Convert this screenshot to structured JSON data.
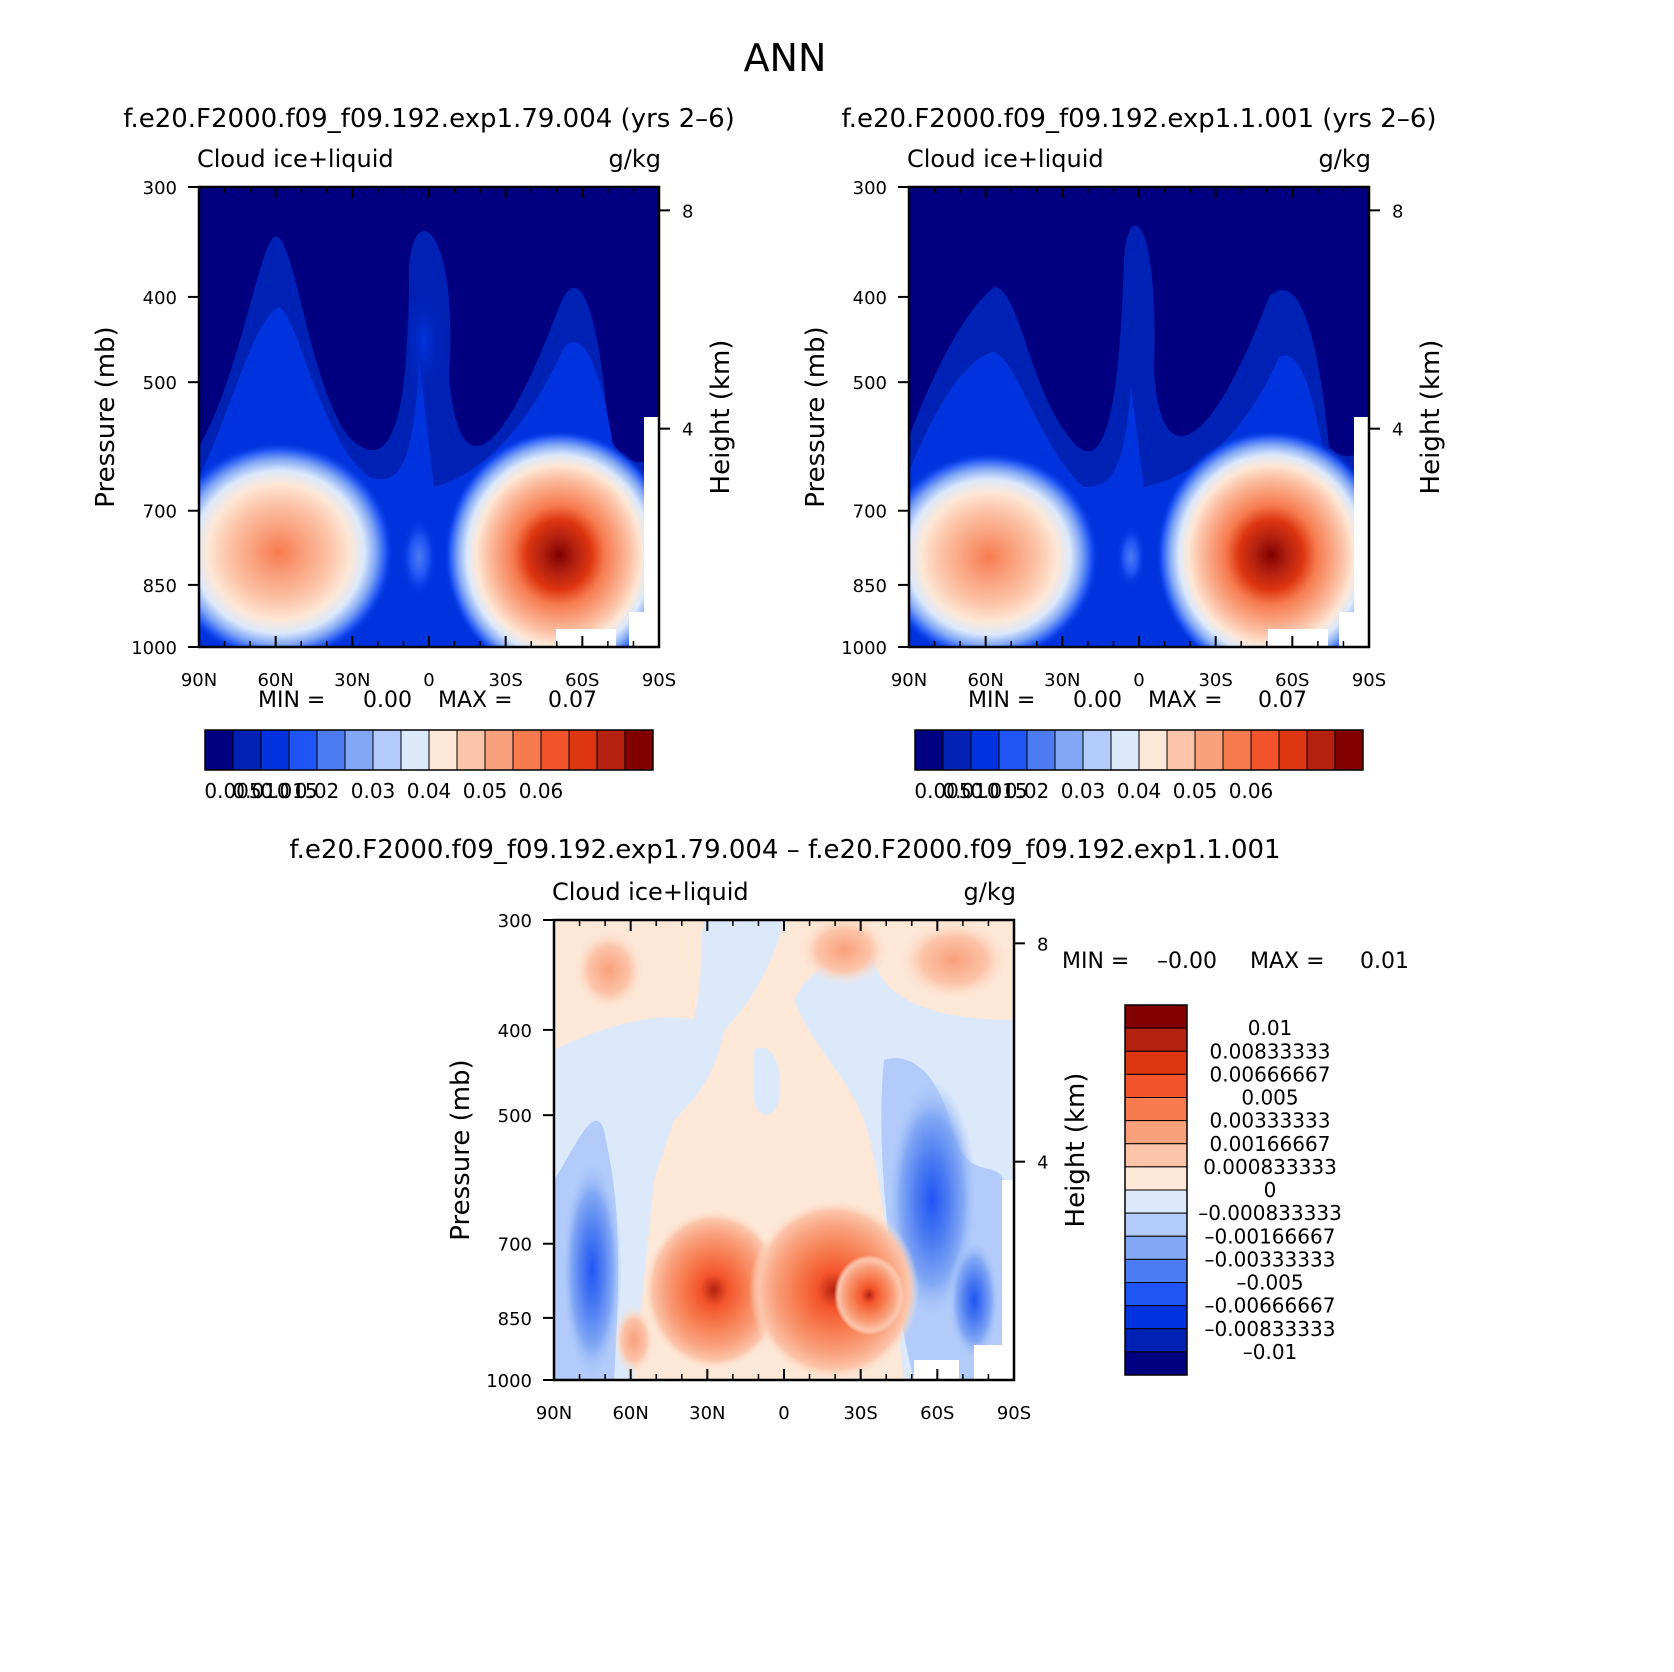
{
  "figure": {
    "title": "ANN"
  },
  "chart_data": [
    {
      "id": "p1",
      "type": "heatmap",
      "title": "f.e20.F2000.f09_f09.192.exp1.79.004 (yrs 2–6)",
      "variable": "Cloud ice+liquid",
      "units": "g/kg",
      "ylabel": "Pressure (mb)",
      "y2label": "Height (km)",
      "x_ticks": [
        "90N",
        "60N",
        "30N",
        "0",
        "30S",
        "60S",
        "90S"
      ],
      "y_ticks": [
        "300",
        "400",
        "500",
        "700",
        "850",
        "1000"
      ],
      "y2_ticks": [
        "8",
        "4"
      ],
      "min_label": "MIN =",
      "min_value": "0.00",
      "max_label": "MAX =",
      "max_value": "0.07",
      "levels": [
        0.005,
        0.01,
        0.015,
        0.02,
        0.03,
        0.04,
        0.05,
        0.06
      ],
      "colorbar_labels": [
        "0.005",
        "0.010",
        "0.015",
        "0.02",
        "0.03",
        "0.04",
        "0.05",
        "0.06"
      ],
      "colors": [
        "#000080",
        "#0022b4",
        "#0033dd",
        "#1f55f5",
        "#4c7bf2",
        "#82a8f5",
        "#b2cbfa",
        "#dce9fb",
        "#fde7d6",
        "#fcc4a9",
        "#f9a07c",
        "#f77b4f",
        "#f4542b",
        "#dd3610",
        "#b42110",
        "#820000"
      ]
    },
    {
      "id": "p2",
      "type": "heatmap",
      "title": "f.e20.F2000.f09_f09.192.exp1.1.001 (yrs 2–6)",
      "variable": "Cloud ice+liquid",
      "units": "g/kg",
      "ylabel": "Pressure (mb)",
      "y2label": "Height (km)",
      "x_ticks": [
        "90N",
        "60N",
        "30N",
        "0",
        "30S",
        "60S",
        "90S"
      ],
      "y_ticks": [
        "300",
        "400",
        "500",
        "700",
        "850",
        "1000"
      ],
      "y2_ticks": [
        "8",
        "4"
      ],
      "min_label": "MIN =",
      "min_value": "0.00",
      "max_label": "MAX =",
      "max_value": "0.07",
      "levels": [
        0.005,
        0.01,
        0.015,
        0.02,
        0.03,
        0.04,
        0.05,
        0.06
      ],
      "colorbar_labels": [
        "0.005",
        "0.010",
        "0.015",
        "0.02",
        "0.03",
        "0.04",
        "0.05",
        "0.06"
      ],
      "colors": [
        "#000080",
        "#0022b4",
        "#0033dd",
        "#1f55f5",
        "#4c7bf2",
        "#82a8f5",
        "#b2cbfa",
        "#dce9fb",
        "#fde7d6",
        "#fcc4a9",
        "#f9a07c",
        "#f77b4f",
        "#f4542b",
        "#dd3610",
        "#b42110",
        "#820000"
      ]
    },
    {
      "id": "p3",
      "type": "heatmap",
      "title": "f.e20.F2000.f09_f09.192.exp1.79.004 – f.e20.F2000.f09_f09.192.exp1.1.001",
      "variable": "Cloud ice+liquid",
      "units": "g/kg",
      "ylabel": "Pressure (mb)",
      "y2label": "Height (km)",
      "x_ticks": [
        "90N",
        "60N",
        "30N",
        "0",
        "30S",
        "60S",
        "90S"
      ],
      "y_ticks": [
        "300",
        "400",
        "500",
        "700",
        "850",
        "1000"
      ],
      "y2_ticks": [
        "8",
        "4"
      ],
      "min_label": "MIN =",
      "min_value": "–0.00",
      "max_label": "MAX =",
      "max_value": "0.01",
      "levels": [
        0.01,
        0.00833333,
        0.00666667,
        0.005,
        0.00333333,
        0.00166667,
        0.000833333,
        0,
        -0.000833333,
        -0.00166667,
        -0.00333333,
        -0.005,
        -0.00666667,
        -0.00833333,
        -0.01
      ],
      "colorbar_labels": [
        "0.01",
        "0.00833333",
        "0.00666667",
        "0.005",
        "0.00333333",
        "0.00166667",
        "0.000833333",
        "0",
        "–0.000833333",
        "–0.00166667",
        "–0.00333333",
        "–0.005",
        "–0.00666667",
        "–0.00833333",
        "–0.01"
      ],
      "colors": [
        "#820000",
        "#b42110",
        "#dd3610",
        "#f4542b",
        "#f77b4f",
        "#f9a07c",
        "#fcc4a9",
        "#fde7d6",
        "#dce9fb",
        "#b2cbfa",
        "#82a8f5",
        "#4c7bf2",
        "#1f55f5",
        "#0033dd",
        "#0022b4",
        "#000080"
      ]
    }
  ]
}
